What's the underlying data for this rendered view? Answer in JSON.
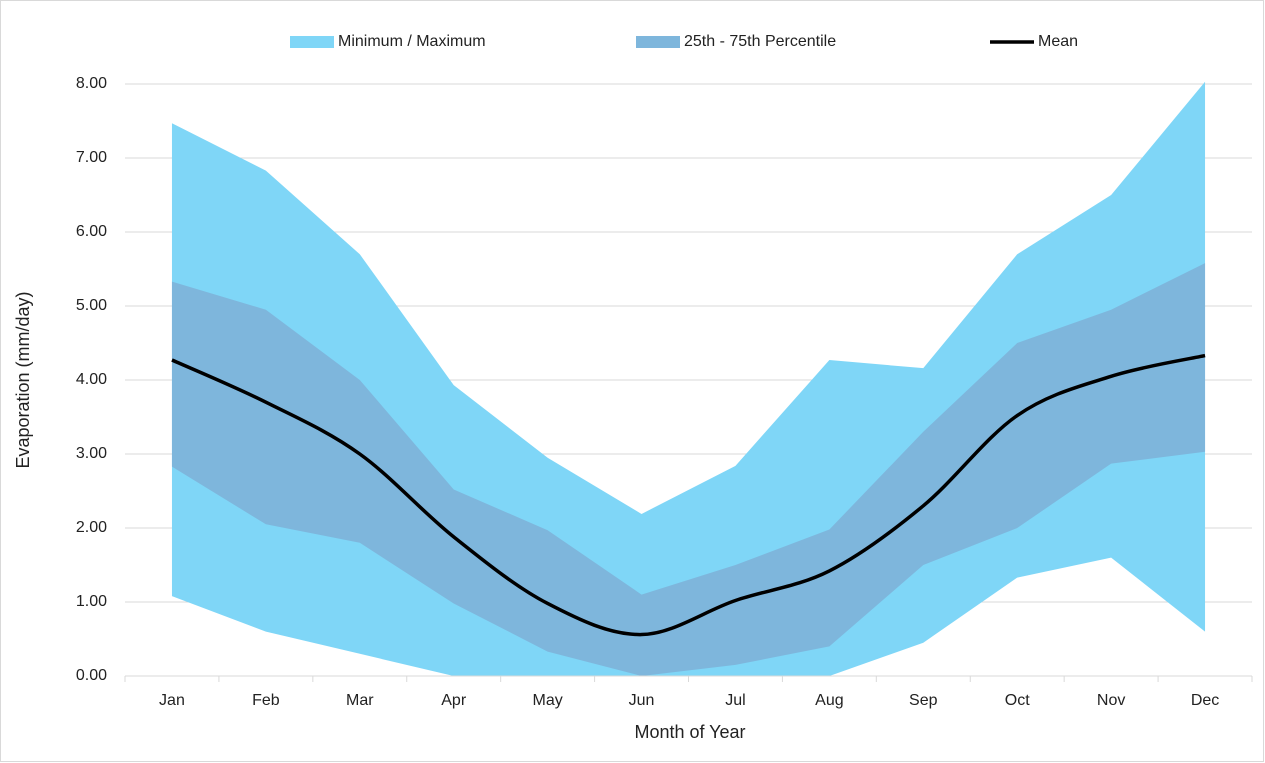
{
  "chart_data": {
    "type": "band-line",
    "x_label": "Month of Year",
    "y_label": "Evaporation (mm/day)",
    "categories": [
      "Jan",
      "Feb",
      "Mar",
      "Apr",
      "May",
      "Jun",
      "Jul",
      "Aug",
      "Sep",
      "Oct",
      "Nov",
      "Dec"
    ],
    "ylim": [
      0,
      8
    ],
    "yticks": [
      {
        "value": 0,
        "label": "0.00"
      },
      {
        "value": 1,
        "label": "1.00"
      },
      {
        "value": 2,
        "label": "2.00"
      },
      {
        "value": 3,
        "label": "3.00"
      },
      {
        "value": 4,
        "label": "4.00"
      },
      {
        "value": 5,
        "label": "5.00"
      },
      {
        "value": 6,
        "label": "6.00"
      },
      {
        "value": 7,
        "label": "7.00"
      },
      {
        "value": 8,
        "label": "8.00"
      }
    ],
    "grid": true,
    "legend": "top",
    "series": [
      {
        "name": "Minimum / Maximum",
        "type": "band",
        "color": "#7fd6f7",
        "low": [
          1.08,
          0.6,
          0.3,
          0.0,
          0.0,
          0.0,
          0.0,
          0.0,
          0.45,
          1.33,
          1.6,
          0.6
        ],
        "high": [
          7.47,
          6.83,
          5.7,
          3.93,
          2.95,
          2.19,
          2.84,
          4.27,
          4.16,
          5.7,
          6.5,
          8.03
        ]
      },
      {
        "name": "25th - 75th Percentile",
        "type": "band",
        "color": "#7eb6dc",
        "low": [
          2.83,
          2.05,
          1.8,
          0.98,
          0.33,
          0.0,
          0.15,
          0.4,
          1.5,
          2.0,
          2.87,
          3.03
        ],
        "high": [
          5.33,
          4.95,
          4.0,
          2.52,
          1.97,
          1.1,
          1.5,
          1.98,
          3.3,
          4.5,
          4.95,
          5.58
        ]
      },
      {
        "name": "Mean",
        "type": "line",
        "color": "#000000",
        "values": [
          4.27,
          3.7,
          3.0,
          1.88,
          0.98,
          0.56,
          1.02,
          1.42,
          2.3,
          3.52,
          4.05,
          4.33
        ]
      }
    ]
  }
}
